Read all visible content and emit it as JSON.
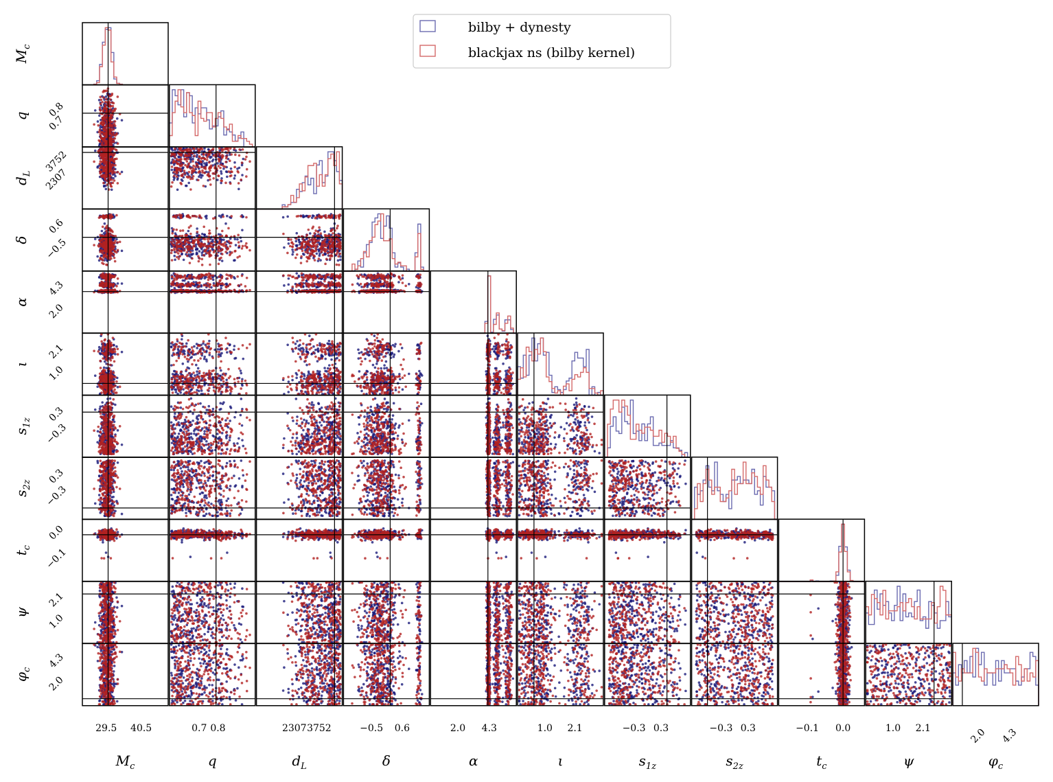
{
  "chart_data": {
    "type": "corner",
    "params": [
      "M_c",
      "q",
      "d_L",
      "δ",
      "α",
      "ι",
      "s_1z",
      "s_2z",
      "t_c",
      "ψ",
      "φ_c"
    ],
    "param_labels": {
      "M_c": "M",
      "M_c_sub": "c",
      "q": "q",
      "d_L": "d",
      "d_L_sub": "L",
      "delta": "δ",
      "alpha": "α",
      "iota": "ι",
      "s1z": "s",
      "s1z_sub": "1z",
      "s2z": "s",
      "s2z_sub": "2z",
      "t_c": "t",
      "t_c_sub": "c",
      "psi": "ψ",
      "phi_c": "φ",
      "phi_c_sub": "c"
    },
    "x_ticks": {
      "M_c": [
        "29.5",
        "40.5"
      ],
      "q": [
        "0.7",
        "0.8"
      ],
      "d_L": [
        "2307",
        "3752"
      ],
      "delta": [
        "−0.5",
        "0.6"
      ],
      "alpha": [
        "2.0",
        "4.3"
      ],
      "iota": [
        "1.0",
        "2.1"
      ],
      "s1z": [
        "−0.3",
        "0.3"
      ],
      "s2z": [
        "−0.3",
        "0.3"
      ],
      "t_c": [
        "−0.1",
        "0.0"
      ],
      "psi": [
        "1.0",
        "2.1"
      ],
      "phi_c": [
        "2.0",
        "4.3"
      ]
    },
    "y_ticks": {
      "q": [
        "0.7",
        "0.8"
      ],
      "d_L": [
        "2307",
        "3752"
      ],
      "delta": [
        "−0.5",
        "0.6"
      ],
      "alpha": [
        "2.0",
        "4.3"
      ],
      "iota": [
        "1.0",
        "2.1"
      ],
      "s1z": [
        "−0.3",
        "0.3"
      ],
      "s2z": [
        "−0.3",
        "0.3"
      ],
      "t_c": [
        "−0.1",
        "0.0"
      ],
      "psi": [
        "1.0",
        "2.1"
      ],
      "phi_c": [
        "2.0",
        "4.3"
      ]
    },
    "truths": {
      "M_c": 30.1,
      "q": 0.79,
      "d_L": 4650,
      "delta": 0.17,
      "alpha": 4.2,
      "iota": 0.6,
      "s1z": 0.43,
      "s2z": -0.6,
      "t_c": 0.0,
      "psi": 2.5,
      "phi_c": 0.7
    },
    "series": [
      {
        "name": "bilby + dynesty",
        "color": "#1a1a7a"
      },
      {
        "name": "blackjax ns (bilby kernel)",
        "color": "#b22222"
      }
    ],
    "legend_location": "top-center"
  }
}
